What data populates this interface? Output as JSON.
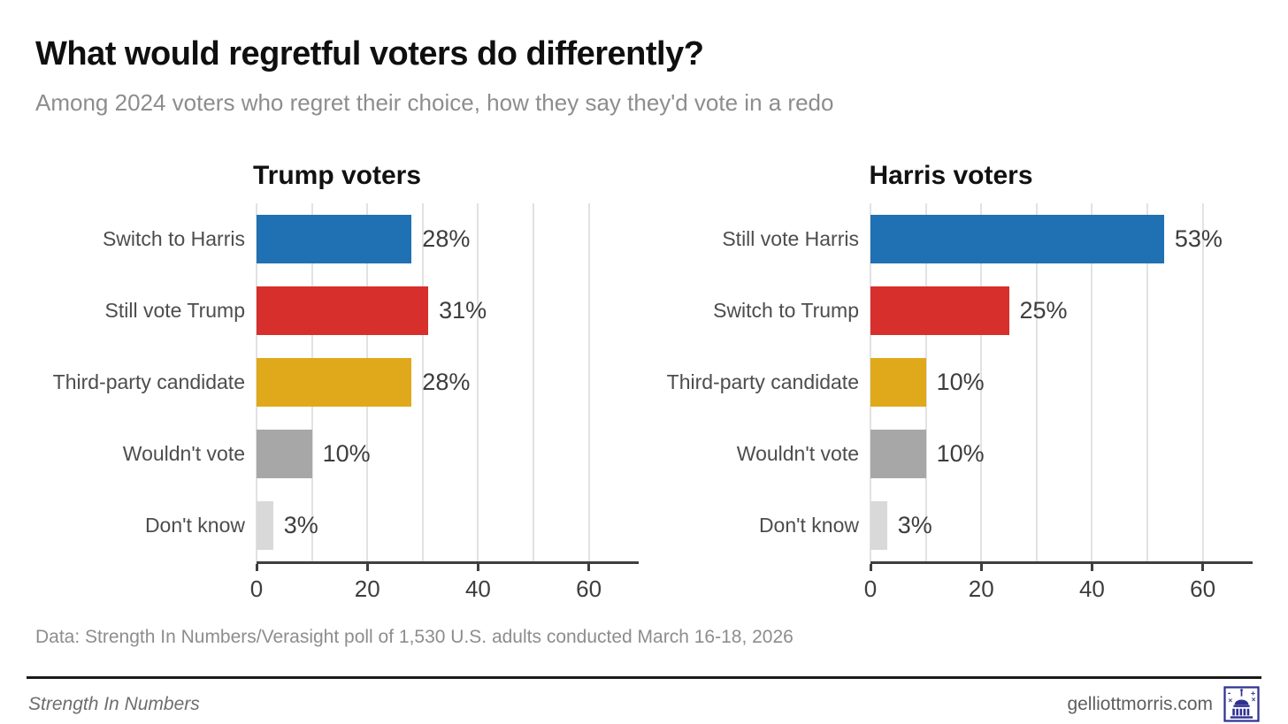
{
  "header": {
    "title": "What would regretful voters do differently?",
    "subtitle": "Among 2024 voters who regret their choice, how they say they'd vote in a redo"
  },
  "chart_data": [
    {
      "type": "bar",
      "orientation": "horizontal",
      "title": "Trump voters",
      "categories": [
        "Switch to Harris",
        "Still vote Trump",
        "Third-party candidate",
        "Wouldn't vote",
        "Don't know"
      ],
      "values": [
        28,
        31,
        28,
        10,
        3
      ],
      "value_labels": [
        "28%",
        "31%",
        "28%",
        "10%",
        "3%"
      ],
      "bar_colors": [
        "#1f71b4",
        "#d62f2c",
        "#dfa91b",
        "#a7a7a7",
        "#d9d9d9"
      ],
      "xlim": [
        0,
        69
      ],
      "xticks": [
        0,
        20,
        40,
        60
      ],
      "gridline_step": 10,
      "grid": true,
      "legend": "none"
    },
    {
      "type": "bar",
      "orientation": "horizontal",
      "title": "Harris voters",
      "categories": [
        "Still vote Harris",
        "Switch to Trump",
        "Third-party candidate",
        "Wouldn't vote",
        "Don't know"
      ],
      "values": [
        53,
        25,
        10,
        10,
        3
      ],
      "value_labels": [
        "53%",
        "25%",
        "10%",
        "10%",
        "3%"
      ],
      "bar_colors": [
        "#1f71b4",
        "#d62f2c",
        "#dfa91b",
        "#a7a7a7",
        "#d9d9d9"
      ],
      "xlim": [
        0,
        69
      ],
      "xticks": [
        0,
        20,
        40,
        60
      ],
      "gridline_step": 10,
      "grid": true,
      "legend": "none"
    }
  ],
  "footer": {
    "note": "Data: Strength In Numbers/Verasight poll of 1,530 U.S. adults conducted March 16-18, 2026",
    "brand": "Strength In Numbers",
    "site": "gelliottmorris.com",
    "logo": "capitol-logo",
    "logo_color": "#2e3192"
  },
  "colors": {
    "axis": "#3f3f3f",
    "gridline": "#e2e2e2",
    "category_label": "#4d4d4d",
    "value_label": "#3d3d3d",
    "title": "#0f0f0f",
    "subtitle": "#8d8d8d",
    "note": "#8d8d8d",
    "rule": "#1a1a1a"
  }
}
